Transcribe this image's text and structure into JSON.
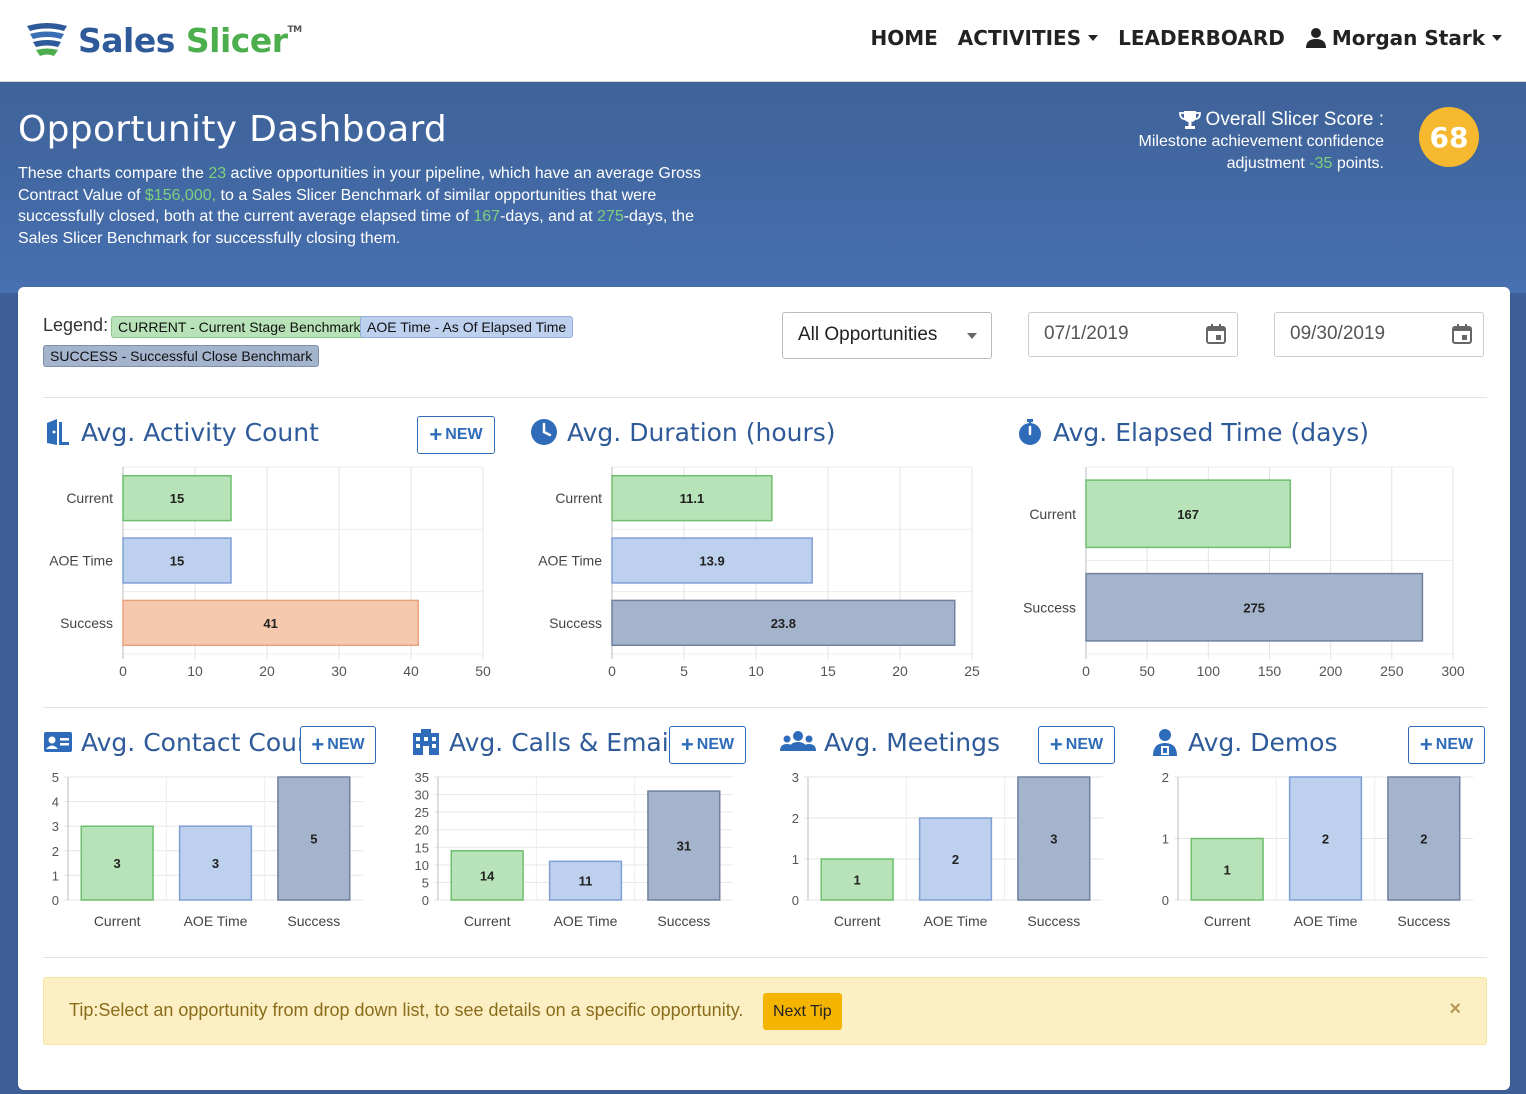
{
  "brand": {
    "name_part1": "Sales",
    "name_part2": "Slicer",
    "tm": "TM",
    "blue": "#2e5a99",
    "green": "#4cae4c"
  },
  "nav": {
    "home": "HOME",
    "activities": "ACTIVITIES",
    "leaderboard": "LEADERBOARD",
    "user": "Morgan Stark"
  },
  "header": {
    "title": "Opportunity Dashboard",
    "intro_1": "These charts compare the ",
    "active_count": "23",
    "intro_2": " active opportunities in your pipeline, which have an average Gross Contract Value of ",
    "gross_value": "$156,000,",
    "intro_3": " to a Sales Slicer Benchmark of similar opportunities that were successfully closed, both at the current average elapsed time of ",
    "elapsed_current": "167",
    "intro_4": "-days, and at ",
    "elapsed_bench": "275",
    "intro_5": "-days, the Sales Slicer Benchmark for successfully closing them.",
    "score_title": "Overall Slicer Score :",
    "score_sub_1": "Milestone achievement confidence adjustment ",
    "score_adjust": "-35",
    "score_sub_2": " points.",
    "score_value": "68"
  },
  "legend": {
    "label": "Legend:",
    "current": "CURRENT - Current Stage Benchmark",
    "aoe": "AOE Time - As Of Elapsed Time",
    "success": "SUCCESS - Successful Close Benchmark"
  },
  "filters": {
    "opportunity": "All Opportunities",
    "start_date": "07/1/2019",
    "end_date": "09/30/2019"
  },
  "new_label": "NEW",
  "colors": {
    "current_fill": "#b8e3b8",
    "current_stroke": "#6dbf6d",
    "aoe_fill": "#bdd0ee",
    "aoe_stroke": "#7f9fd5",
    "success_fill": "#a4b4cc",
    "success_stroke": "#6f819e",
    "success_alt_fill": "#f6c8ad",
    "success_alt_stroke": "#e9a27c",
    "title_blue": "#2e5a99"
  },
  "chart_data": [
    {
      "id": "activity",
      "type": "bar",
      "orientation": "horizontal",
      "title": "Avg. Activity Count",
      "icon": "door-icon",
      "categories": [
        "Current",
        "AOE Time",
        "Success"
      ],
      "values": [
        15,
        15,
        41
      ],
      "xlim": [
        0,
        50
      ],
      "ticks": [
        0,
        10,
        20,
        30,
        40,
        50
      ],
      "success_color": "alt"
    },
    {
      "id": "duration",
      "type": "bar",
      "orientation": "horizontal",
      "title": "Avg. Duration (hours)",
      "icon": "clock-icon",
      "categories": [
        "Current",
        "AOE Time",
        "Success"
      ],
      "values": [
        11.1,
        13.9,
        23.8
      ],
      "xlim": [
        0,
        25
      ],
      "ticks": [
        0,
        5,
        10,
        15,
        20,
        25
      ]
    },
    {
      "id": "elapsed",
      "type": "bar",
      "orientation": "horizontal",
      "title": "Avg. Elapsed Time (days)",
      "icon": "stopwatch-icon",
      "categories": [
        "Current",
        "Success"
      ],
      "values": [
        167,
        275
      ],
      "xlim": [
        0,
        300
      ],
      "ticks": [
        0,
        50,
        100,
        150,
        200,
        250,
        300
      ]
    },
    {
      "id": "contact",
      "type": "bar",
      "orientation": "vertical",
      "title": "Avg. Contact Count",
      "icon": "contact-card-icon",
      "categories": [
        "Current",
        "AOE Time",
        "Success"
      ],
      "values": [
        3,
        3,
        5
      ],
      "ylim": [
        0,
        5
      ],
      "ticks": [
        0,
        1,
        2,
        3,
        4,
        5
      ]
    },
    {
      "id": "calls",
      "type": "bar",
      "orientation": "vertical",
      "title": "Avg. Calls & Emails",
      "icon": "building-icon",
      "categories": [
        "Current",
        "AOE Time",
        "Success"
      ],
      "values": [
        14,
        11,
        31
      ],
      "ylim": [
        0,
        35
      ],
      "ticks": [
        0,
        5,
        10,
        15,
        20,
        25,
        30,
        35
      ]
    },
    {
      "id": "meetings",
      "type": "bar",
      "orientation": "vertical",
      "title": "Avg. Meetings",
      "icon": "users-icon",
      "categories": [
        "Current",
        "AOE Time",
        "Success"
      ],
      "values": [
        1,
        2,
        3
      ],
      "ylim": [
        0,
        3
      ],
      "ticks": [
        0,
        1,
        2,
        3
      ]
    },
    {
      "id": "demos",
      "type": "bar",
      "orientation": "vertical",
      "title": "Avg. Demos",
      "icon": "presenter-icon",
      "categories": [
        "Current",
        "AOE Time",
        "Success"
      ],
      "values": [
        1,
        2,
        2
      ],
      "ylim": [
        0,
        2
      ],
      "ticks": [
        0,
        1,
        2
      ]
    }
  ],
  "tip": {
    "text": "Tip:Select an opportunity from drop down list, to see details on a specific opportunity.",
    "button": "Next Tip",
    "close": "×"
  }
}
